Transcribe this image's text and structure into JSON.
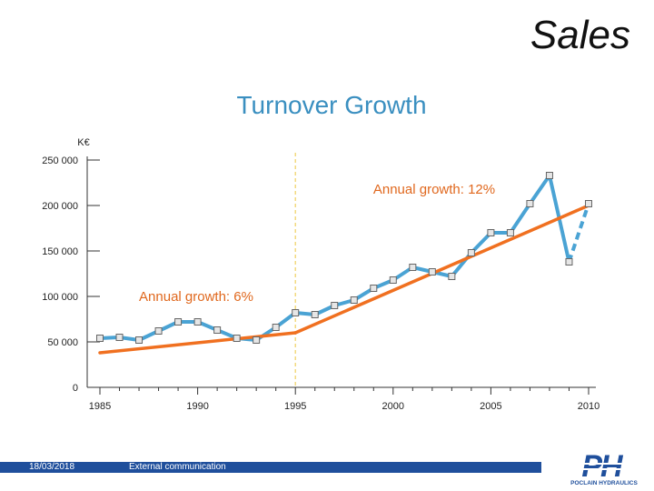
{
  "slide": {
    "title": "Sales",
    "footer_date": "18/03/2018",
    "footer_text": "External communication",
    "logo_text": "POCLAIN HYDRAULICS"
  },
  "colors": {
    "series_line": "#4aa3d4",
    "trend_line": "#f07020",
    "title_blue": "#3a8fc0",
    "annotation_orange": "#e0681e",
    "footer_blue": "#1f4f9c",
    "marker_fill": "#e6e6e6",
    "divider": "#f0d060"
  },
  "chart_data": {
    "type": "line",
    "title": "Turnover Growth",
    "ylabel": "K€",
    "ylim": [
      0,
      250000
    ],
    "xlim": [
      1985,
      2010
    ],
    "yticks": [
      0,
      50000,
      100000,
      150000,
      200000,
      250000
    ],
    "ytick_labels": [
      "0",
      "50 000",
      "100 000",
      "150 000",
      "200 000",
      "250 000"
    ],
    "xticks": [
      1985,
      1990,
      1995,
      2000,
      2005,
      2010
    ],
    "xtick_labels": [
      "1985",
      "1990",
      "1995",
      "2000",
      "2005",
      "2010"
    ],
    "divider_x": 1995,
    "series": [
      {
        "role": "turnover",
        "x": [
          1985,
          1986,
          1987,
          1988,
          1989,
          1990,
          1991,
          1992,
          1993,
          1994,
          1995,
          1996,
          1997,
          1998,
          1999,
          2000,
          2001,
          2002,
          2003,
          2004,
          2005,
          2006,
          2007,
          2008,
          2009,
          2010
        ],
        "values": [
          54000,
          55000,
          52000,
          62000,
          72000,
          72000,
          63000,
          54000,
          52000,
          66000,
          82000,
          80000,
          90000,
          96000,
          109000,
          118000,
          132000,
          127000,
          122000,
          148000,
          170000,
          170000,
          202000,
          233000,
          138000,
          202000
        ],
        "dashed_from": 2009
      }
    ],
    "trend_lines": [
      {
        "role": "growth-1985-1995",
        "x": [
          1985,
          1995
        ],
        "values": [
          38000,
          60000
        ]
      },
      {
        "role": "growth-1995-2010",
        "x": [
          1995,
          2010
        ],
        "values": [
          60000,
          200000
        ]
      }
    ],
    "annotations": [
      {
        "text": "Annual growth: 6%"
      },
      {
        "text": "Annual growth: 12%"
      }
    ]
  }
}
